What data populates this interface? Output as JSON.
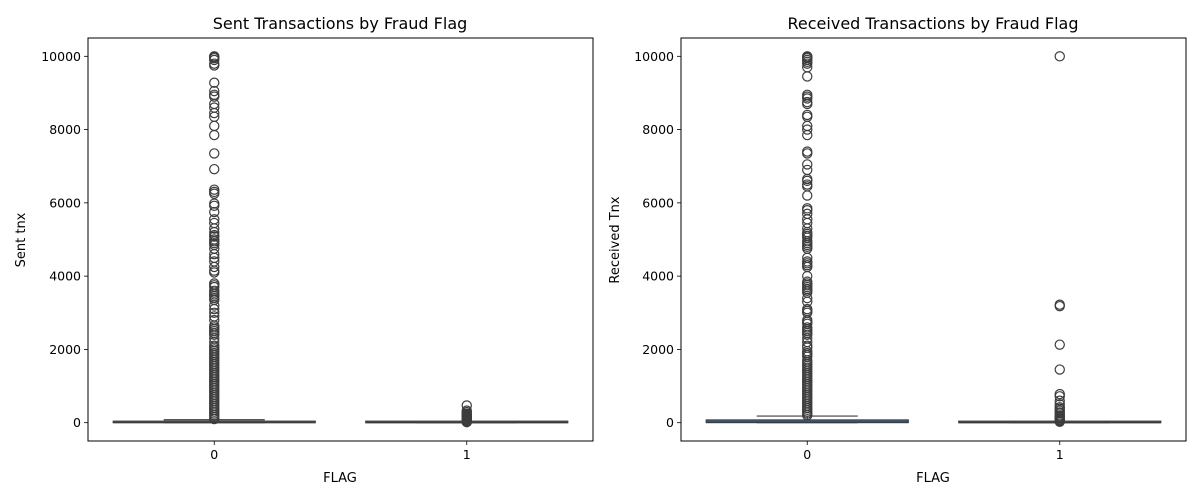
{
  "chart_data": [
    {
      "type": "box",
      "title": "Sent Transactions by Fraud Flag",
      "xlabel": "FLAG",
      "ylabel": "Sent tnx",
      "categories": [
        "0",
        "1"
      ],
      "ylim": [
        -500,
        10500
      ],
      "yticks": [
        0,
        2000,
        4000,
        6000,
        8000,
        10000
      ],
      "ytick_labels": [
        "0",
        "2000",
        "4000",
        "6000",
        "8000",
        "10000"
      ],
      "box_color": "#3e6ea6",
      "boxes": [
        {
          "category": "0",
          "q1": 0,
          "median": 3,
          "q3": 35,
          "whisker_low": 0,
          "whisker_high": 80,
          "outliers": [
            10000,
            9990,
            9980,
            9950,
            9900,
            9800,
            9750,
            9280,
            9050,
            8950,
            8900,
            8700,
            8600,
            8450,
            8350,
            8100,
            7850,
            7350,
            6920,
            6360,
            6300,
            6250,
            5980,
            5920,
            5750,
            5550,
            5450,
            5300,
            5200,
            5120,
            5080,
            5000,
            4950,
            4900,
            4850,
            4750,
            4600,
            4500,
            4400,
            4250,
            4150,
            4100,
            3800,
            3750,
            3700,
            3600,
            3550,
            3500,
            3450,
            3400,
            3350,
            3200,
            3100,
            3000,
            2900,
            2800,
            2650,
            2600,
            2550,
            2500,
            2450,
            2400,
            2300,
            2200,
            2100,
            2050,
            2000,
            1950,
            1900,
            1850,
            1800,
            1750,
            1700,
            1650,
            1600,
            1550,
            1500,
            1450,
            1400,
            1350,
            1300,
            1250,
            1200,
            1150,
            1100,
            1050,
            1000,
            950,
            900,
            850,
            800,
            750,
            700,
            650,
            600,
            550,
            500,
            450,
            400,
            350,
            300,
            250,
            200,
            150,
            100
          ]
        },
        {
          "category": "1",
          "q1": 0,
          "median": 1,
          "q3": 4,
          "whisker_low": 0,
          "whisker_high": 10,
          "outliers": [
            470,
            330,
            290,
            250,
            220,
            200,
            180,
            160,
            140,
            120,
            100,
            80,
            60,
            40,
            20,
            15
          ]
        }
      ]
    },
    {
      "type": "box",
      "title": "Received Transactions by Fraud Flag",
      "xlabel": "FLAG",
      "ylabel": "Received Tnx",
      "categories": [
        "0",
        "1"
      ],
      "ylim": [
        -500,
        10500
      ],
      "yticks": [
        0,
        2000,
        4000,
        6000,
        8000,
        10000
      ],
      "ytick_labels": [
        "0",
        "2000",
        "4000",
        "6000",
        "8000",
        "10000"
      ],
      "box_color": "#3e6ea6",
      "boxes": [
        {
          "category": "0",
          "q1": 2,
          "median": 20,
          "q3": 75,
          "whisker_low": 0,
          "whisker_high": 180,
          "outliers": [
            10000,
            9990,
            9970,
            9950,
            9900,
            9850,
            9800,
            9700,
            9450,
            8950,
            8900,
            8850,
            8750,
            8700,
            8400,
            8350,
            8100,
            8000,
            7850,
            7400,
            7350,
            7050,
            6900,
            6650,
            6600,
            6500,
            6450,
            6200,
            5850,
            5800,
            5700,
            5550,
            5450,
            5300,
            5200,
            5150,
            5100,
            5050,
            4950,
            4900,
            4850,
            4800,
            4750,
            4500,
            4400,
            4350,
            4300,
            4250,
            4000,
            3850,
            3800,
            3750,
            3700,
            3650,
            3600,
            3550,
            3400,
            3300,
            3100,
            3050,
            3000,
            2800,
            2750,
            2700,
            2600,
            2550,
            2500,
            2450,
            2400,
            2300,
            2200,
            2100,
            2050,
            1950,
            1900,
            1850,
            1800,
            1700,
            1650,
            1600,
            1550,
            1500,
            1450,
            1400,
            1350,
            1300,
            1250,
            1200,
            1150,
            1100,
            1050,
            1000,
            950,
            900,
            850,
            800,
            750,
            700,
            650,
            600,
            550,
            500,
            450,
            400,
            350,
            300,
            250,
            200
          ]
        },
        {
          "category": "1",
          "q1": 0,
          "median": 1,
          "q3": 5,
          "whisker_low": 0,
          "whisker_high": 12,
          "outliers": [
            10000,
            3220,
            3180,
            2130,
            1450,
            780,
            720,
            600,
            500,
            420,
            380,
            330,
            280,
            250,
            200,
            170,
            140,
            110,
            80,
            60,
            40,
            25
          ]
        }
      ]
    }
  ]
}
